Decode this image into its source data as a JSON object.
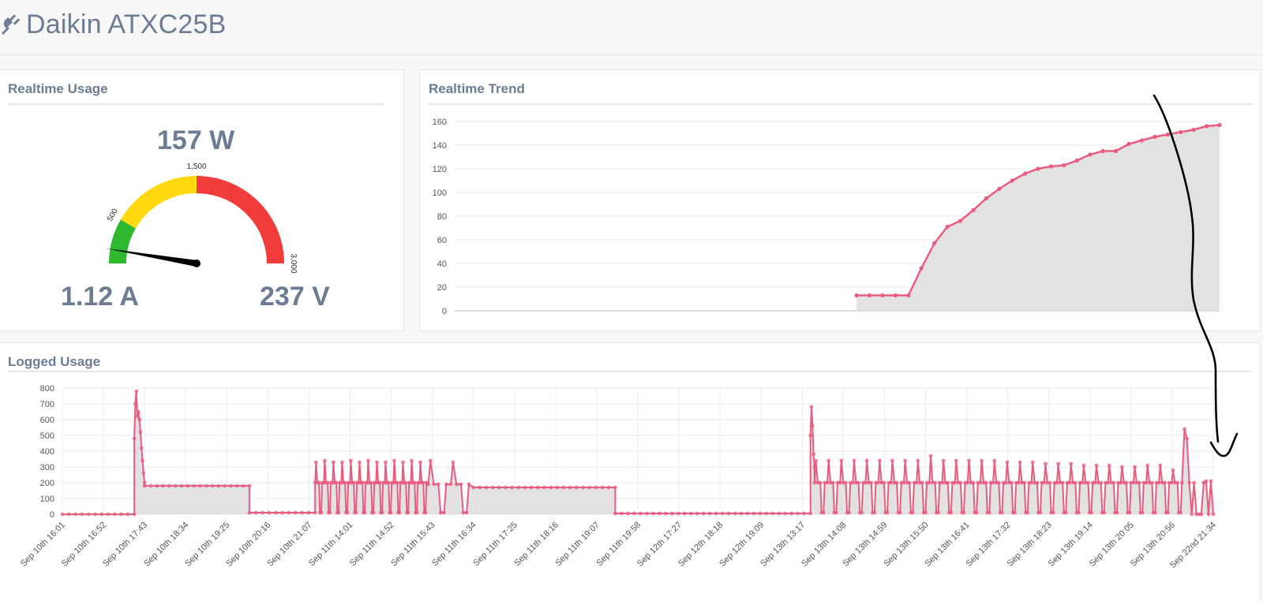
{
  "page": {
    "title": "Daikin ATXC25B",
    "icon": "plug-icon"
  },
  "realtime_usage": {
    "title": "Realtime Usage",
    "watts": "157 W",
    "amps": "1.12 A",
    "volts": "237 V",
    "gauge": {
      "min": 0,
      "max": 3000,
      "value": 157,
      "tick_labels": [
        "500",
        "1,500",
        "3,000"
      ],
      "bands": [
        {
          "from": 0,
          "to": 500,
          "color": "#2eb82e"
        },
        {
          "from": 500,
          "to": 1500,
          "color": "#ffd90f"
        },
        {
          "from": 1500,
          "to": 3000,
          "color": "#f23c3c"
        }
      ]
    }
  },
  "realtime_trend": {
    "title": "Realtime Trend"
  },
  "logged_usage": {
    "title": "Logged Usage"
  },
  "colors": {
    "line": "#e85c7f",
    "fill": "#e2e2e2",
    "annotation": "#000000"
  },
  "chart_data": [
    {
      "type": "area",
      "title": "Realtime Trend",
      "xlabel": "",
      "ylabel": "",
      "ylim": [
        0,
        160
      ],
      "yticks": [
        "0",
        "20",
        "40",
        "60",
        "80",
        "100",
        "120",
        "140",
        "160"
      ],
      "grid": true,
      "legend": "none",
      "series": [
        {
          "values": [
            13,
            13,
            13,
            13,
            13,
            36,
            57,
            71,
            76,
            85,
            95,
            103,
            110,
            116,
            120,
            122,
            123,
            127,
            132,
            135,
            135,
            141,
            144,
            147,
            149,
            151,
            153,
            156,
            157
          ],
          "offset_of_60": 31
        }
      ]
    },
    {
      "type": "area",
      "title": "Logged Usage",
      "xlabel": "",
      "ylabel": "",
      "ylim": [
        0,
        800
      ],
      "yticks": [
        "0",
        "100",
        "200",
        "300",
        "400",
        "500",
        "600",
        "700",
        "800"
      ],
      "grid": true,
      "legend": "none",
      "categories": [
        "Sep 10th 16:01",
        "Sep 10th 16:52",
        "Sep 10th 17:43",
        "Sep 10th 18:34",
        "Sep 10th 19:25",
        "Sep 10th 20:16",
        "Sep 10th 21:07",
        "Sep 11th 14:01",
        "Sep 11th 14:52",
        "Sep 11th 15:43",
        "Sep 11th 16:34",
        "Sep 11th 17:25",
        "Sep 11th 18:16",
        "Sep 11th 19:07",
        "Sep 11th 19:58",
        "Sep 12th 17:27",
        "Sep 12th 18:18",
        "Sep 12th 19:09",
        "Sep 13th 13:17",
        "Sep 13th 14:08",
        "Sep 13th 14:59",
        "Sep 13th 15:50",
        "Sep 13th 16:41",
        "Sep 13th 17:32",
        "Sep 13th 18:23",
        "Sep 13th 19:14",
        "Sep 13th 20:05",
        "Sep 13th 20:56",
        "Sep 22nd 21:34"
      ],
      "segments": [
        {
          "from": 0,
          "to": 1.75,
          "value": 0
        },
        {
          "from": 1.75,
          "to": 2.0,
          "values": [
            480,
            700,
            780,
            620,
            650,
            600,
            520,
            420,
            340,
            260,
            200
          ]
        },
        {
          "from": 2.0,
          "to": 4.55,
          "value": 180
        },
        {
          "from": 4.55,
          "to": 6.15,
          "value": 10
        },
        {
          "from": 6.15,
          "to": 8.9,
          "base": 200,
          "spikes": [
            330,
            340,
            330,
            330,
            340,
            330,
            340,
            330,
            330,
            340,
            330,
            340,
            330
          ],
          "dips": 10
        },
        {
          "from": 8.9,
          "to": 10.0,
          "base": 190,
          "spikes": [
            340,
            330
          ],
          "dips": 10
        },
        {
          "from": 10.0,
          "to": 13.45,
          "value": 170
        },
        {
          "from": 13.45,
          "to": 18.2,
          "value": 5
        },
        {
          "from": 18.2,
          "to": 18.3,
          "values": [
            500,
            680,
            560,
            380,
            300
          ]
        },
        {
          "from": 18.3,
          "to": 27.3,
          "base": 200,
          "spikes": [
            340,
            340,
            340,
            340,
            340,
            340,
            340,
            340,
            340,
            370,
            340,
            340,
            340,
            340,
            340,
            330,
            330,
            330,
            320,
            320,
            320,
            310,
            310,
            310,
            300,
            300,
            310,
            310,
            280
          ],
          "dips": 10
        },
        {
          "from": 27.3,
          "to": 28.0,
          "values": [
            540,
            480,
            200,
            0,
            200,
            0,
            0,
            0,
            200,
            210,
            0,
            210,
            0
          ]
        }
      ]
    }
  ]
}
